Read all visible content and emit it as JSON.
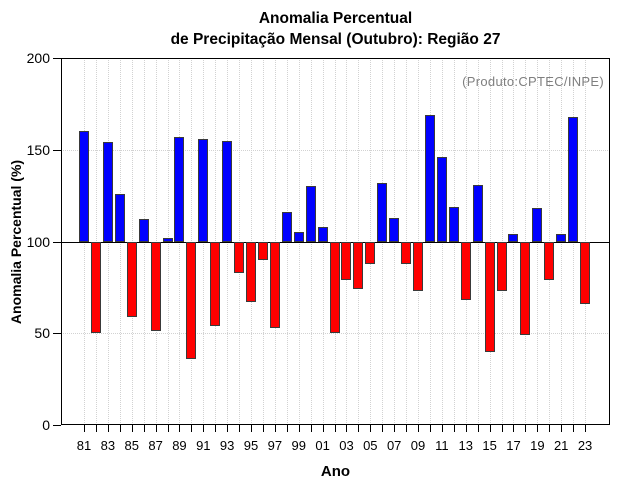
{
  "title": {
    "line1": "Anomalia Percentual",
    "line2": "de Precipitação Mensal (Outubro): Região 27"
  },
  "annotation": "(Produto:CPTEC/INPE)",
  "axes": {
    "y_label": "Anomalia Percentual (%)",
    "x_label": "Ano",
    "y_ticks": [
      0,
      50,
      100,
      150,
      200
    ],
    "baseline": 100
  },
  "colors": {
    "above_baseline": "#0000ff",
    "below_baseline": "#ff0000",
    "bar_border": "#3a3a3a",
    "grid": "#d2d2d2",
    "annotation_gray": "#7f7f7f",
    "axis_black": "#000000"
  },
  "chart_data": {
    "type": "bar",
    "title": "Anomalia Percentual de Precipitação Mensal (Outubro): Região 27",
    "xlabel": "Ano",
    "ylabel": "Anomalia Percentual (%)",
    "ylim": [
      0,
      200
    ],
    "baseline": 100,
    "grid": "dotted horizontal at 50 and 150, dotted vertical at every year",
    "legend_position": "none",
    "annotation": "(Produto:CPTEC/INPE)",
    "color_rule": "blue if value >= 100 else red",
    "x_tick_labels_shown": [
      "81",
      "83",
      "85",
      "87",
      "89",
      "91",
      "93",
      "95",
      "97",
      "99",
      "01",
      "03",
      "05",
      "07",
      "09",
      "11",
      "13",
      "15",
      "17",
      "19",
      "21",
      "23"
    ],
    "categories": [
      "81",
      "82",
      "83",
      "84",
      "85",
      "86",
      "87",
      "88",
      "89",
      "90",
      "91",
      "92",
      "93",
      "94",
      "95",
      "96",
      "97",
      "98",
      "99",
      "00",
      "01",
      "02",
      "03",
      "04",
      "05",
      "06",
      "07",
      "08",
      "09",
      "10",
      "11",
      "12",
      "13",
      "14",
      "15",
      "16",
      "17",
      "18",
      "19",
      "20",
      "21",
      "22",
      "23"
    ],
    "values": [
      160,
      50,
      154,
      126,
      59,
      112,
      51,
      102,
      157,
      36,
      156,
      54,
      155,
      83,
      67,
      90,
      53,
      116,
      105,
      130,
      108,
      50,
      79,
      74,
      88,
      132,
      113,
      88,
      73,
      169,
      146,
      119,
      68,
      131,
      40,
      73,
      104,
      49,
      118,
      79,
      104,
      168,
      66
    ]
  }
}
